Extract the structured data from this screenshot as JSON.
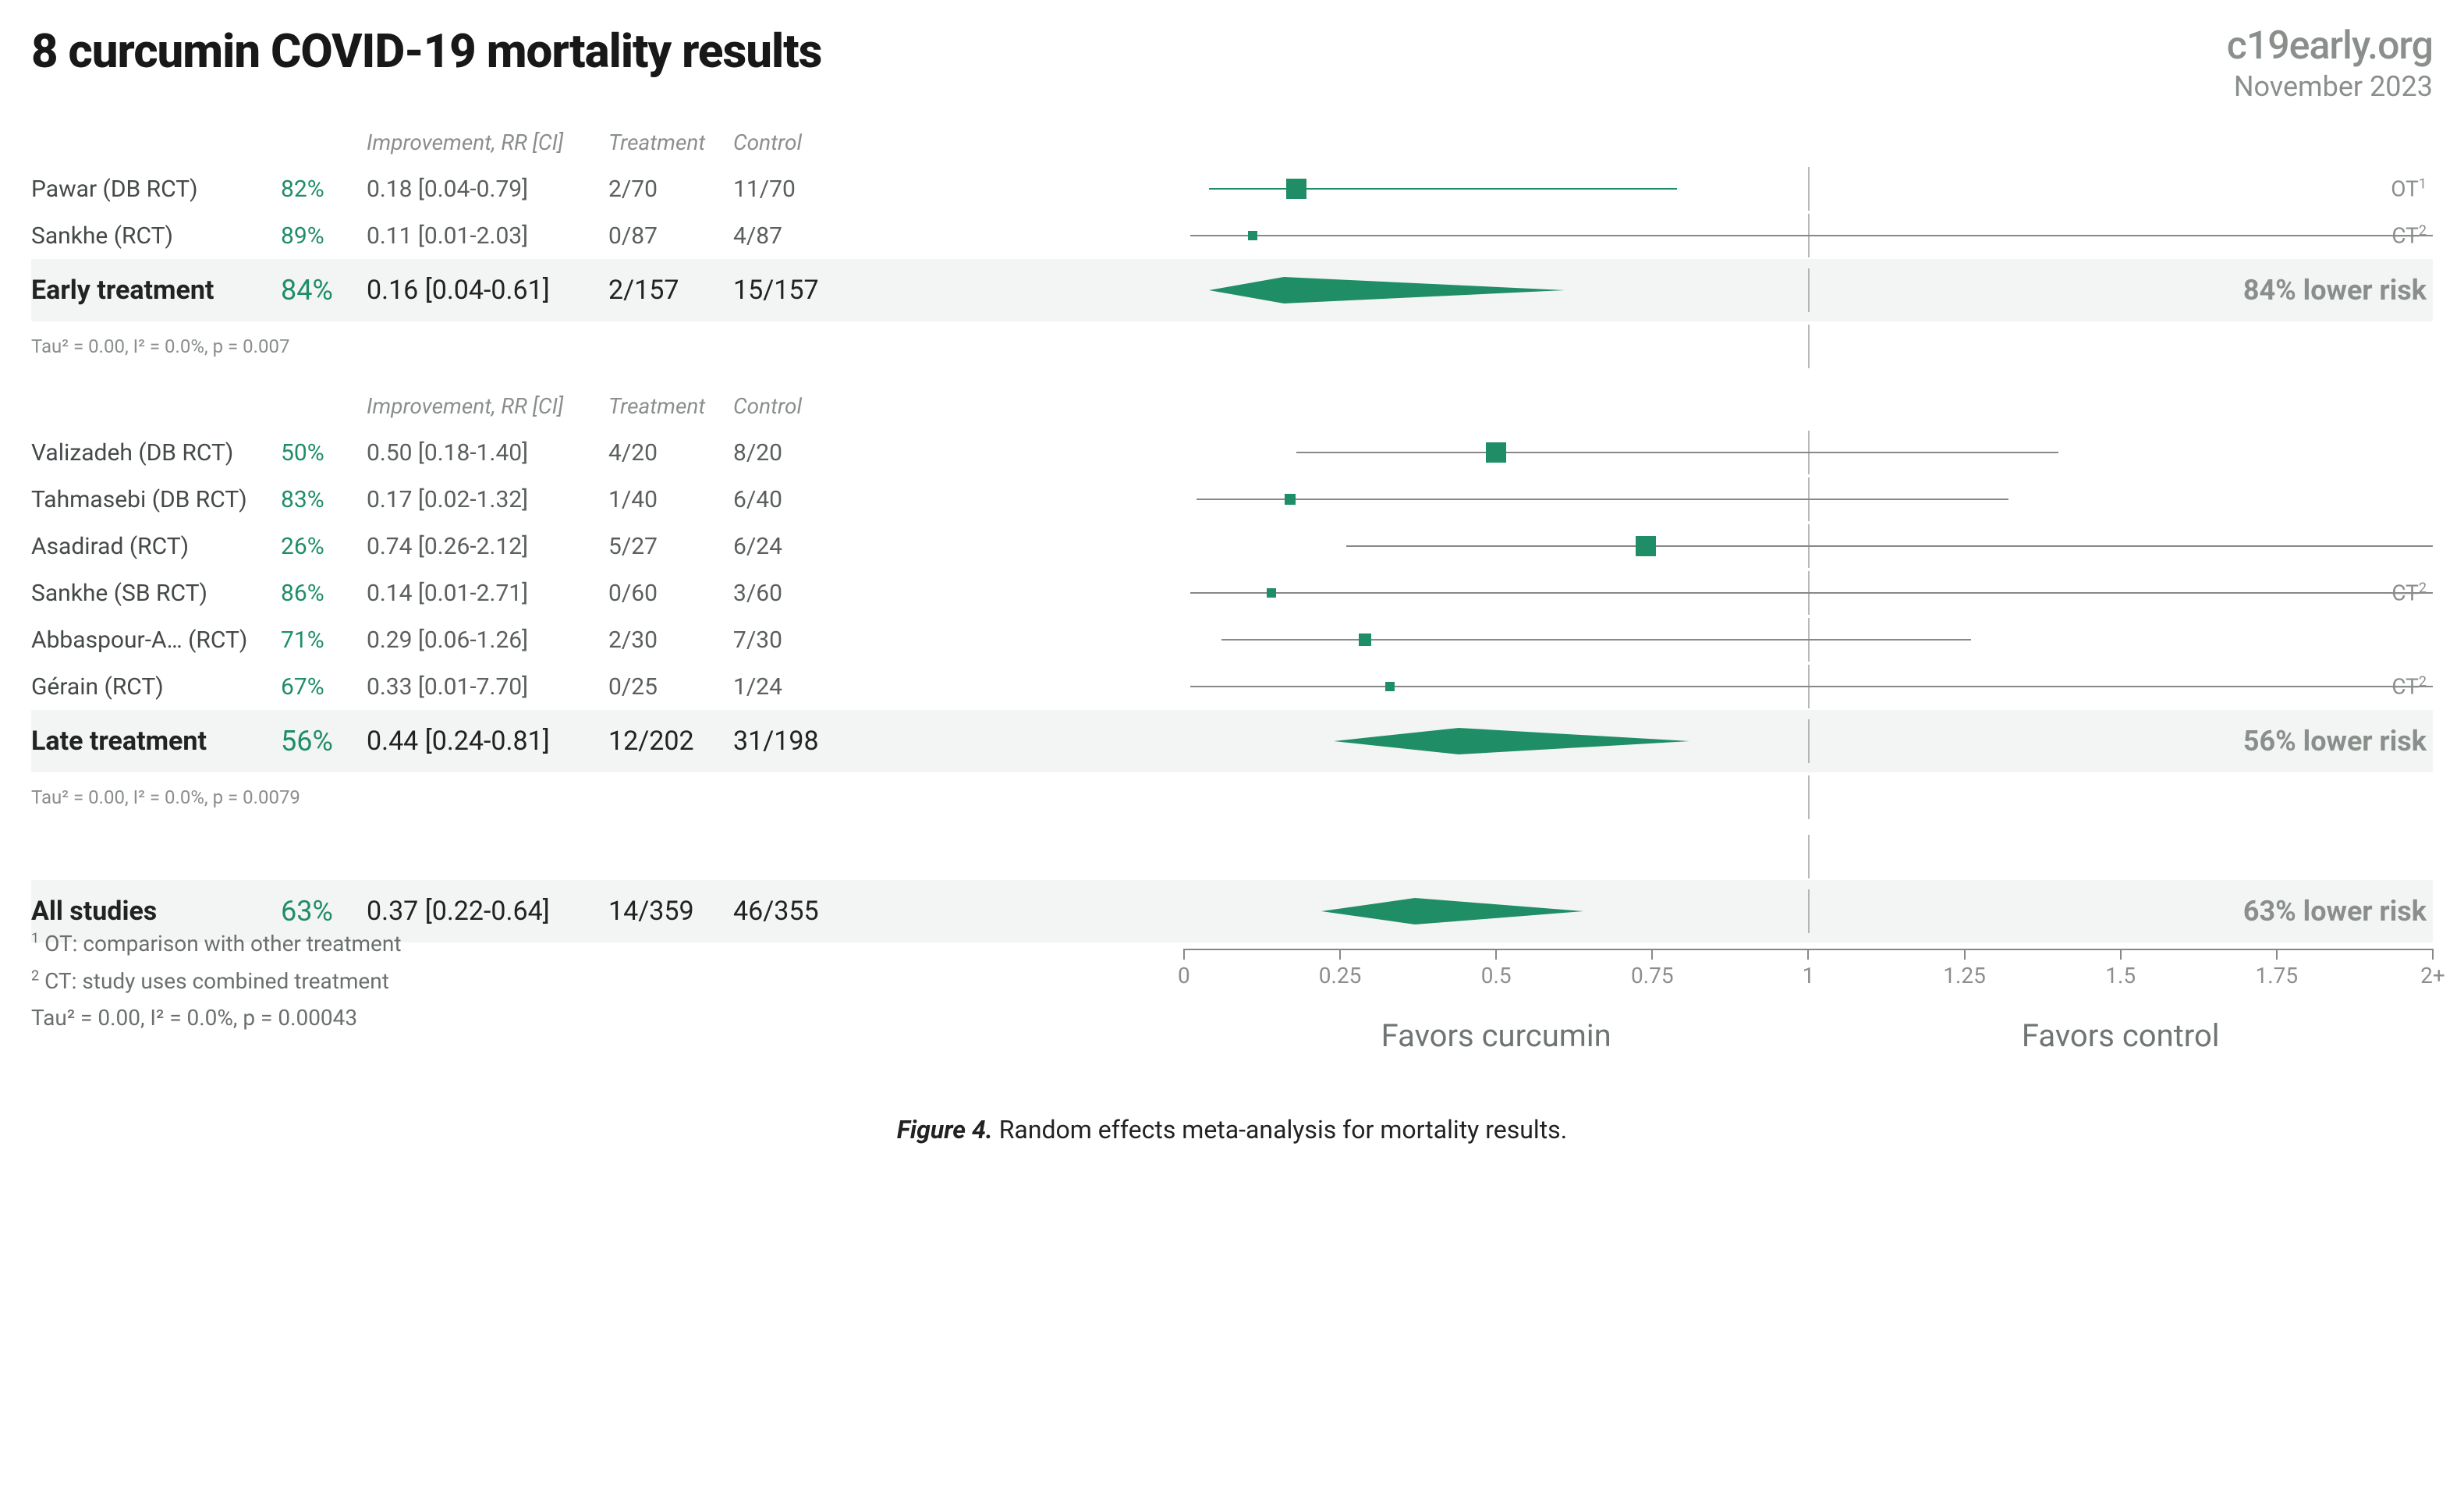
{
  "title": "8 curcumin COVID-19 mortality results",
  "brand": "c19early.org",
  "date": "November 2023",
  "colors": {
    "accent": "#1f8e66",
    "muted": "#8a8f8c",
    "text": "#222222",
    "ci_line": "#888888",
    "summary_bg": "#f3f4f4",
    "background": "#ffffff"
  },
  "plot": {
    "x_min": 0.0,
    "x_max": 2.0,
    "ref": 1.0,
    "ticks": [
      0,
      0.25,
      0.5,
      0.75,
      1,
      1.25,
      1.5,
      1.75,
      2
    ],
    "tick_labels": [
      "0",
      "0.25",
      "0.5",
      "0.75",
      "1",
      "1.25",
      "1.5",
      "1.75",
      "2+"
    ],
    "favors_left": "Favors curcumin",
    "favors_right": "Favors control"
  },
  "headers": {
    "improvement": "Improvement, RR [CI]",
    "treatment": "Treatment",
    "control": "Control"
  },
  "groups": [
    {
      "name": "Early treatment",
      "summary": {
        "pct": "84%",
        "rr_ci": "0.16 [0.04-0.61]",
        "treat": "2/157",
        "ctrl": "15/157",
        "rr": 0.16,
        "ci_lo": 0.04,
        "ci_hi": 0.61,
        "risk_label": "84% lower risk",
        "stats": "Tau² = 0.00, I² = 0.0%, p = 0.007"
      },
      "rows": [
        {
          "study": "Pawar (DB RCT)",
          "pct": "82%",
          "rr_ci": "0.18 [0.04-0.79]",
          "treat": "2/70",
          "ctrl": "11/70",
          "rr": 0.18,
          "ci_lo": 0.04,
          "ci_hi": 0.79,
          "size": 26,
          "annot": "OT",
          "annot_sup": "1",
          "strike": false,
          "ci_green": true
        },
        {
          "study": "Sankhe (RCT)",
          "pct": "89%",
          "rr_ci": "0.11 [0.01-2.03]",
          "treat": "0/87",
          "ctrl": "4/87",
          "rr": 0.11,
          "ci_lo": 0.01,
          "ci_hi": 2.03,
          "size": 12,
          "annot": "CT",
          "annot_sup": "2",
          "strike": true,
          "ci_green": false
        }
      ]
    },
    {
      "name": "Late treatment",
      "summary": {
        "pct": "56%",
        "rr_ci": "0.44 [0.24-0.81]",
        "treat": "12/202",
        "ctrl": "31/198",
        "rr": 0.44,
        "ci_lo": 0.24,
        "ci_hi": 0.81,
        "risk_label": "56% lower risk",
        "stats": "Tau² = 0.00, I² = 0.0%, p = 0.0079"
      },
      "rows": [
        {
          "study": "Valizadeh (DB RCT)",
          "pct": "50%",
          "rr_ci": "0.50 [0.18-1.40]",
          "treat": "4/20",
          "ctrl": "8/20",
          "rr": 0.5,
          "ci_lo": 0.18,
          "ci_hi": 1.4,
          "size": 26,
          "annot": "",
          "annot_sup": "",
          "strike": false,
          "ci_green": false
        },
        {
          "study": "Tahmasebi (DB RCT)",
          "pct": "83%",
          "rr_ci": "0.17 [0.02-1.32]",
          "treat": "1/40",
          "ctrl": "6/40",
          "rr": 0.17,
          "ci_lo": 0.02,
          "ci_hi": 1.32,
          "size": 14,
          "annot": "",
          "annot_sup": "",
          "strike": false,
          "ci_green": false
        },
        {
          "study": "Asadirad (RCT)",
          "pct": "26%",
          "rr_ci": "0.74 [0.26-2.12]",
          "treat": "5/27",
          "ctrl": "6/24",
          "rr": 0.74,
          "ci_lo": 0.26,
          "ci_hi": 2.12,
          "size": 26,
          "annot": "",
          "annot_sup": "",
          "strike": false,
          "ci_green": false
        },
        {
          "study": "Sankhe (SB RCT)",
          "pct": "86%",
          "rr_ci": "0.14 [0.01-2.71]",
          "treat": "0/60",
          "ctrl": "3/60",
          "rr": 0.14,
          "ci_lo": 0.01,
          "ci_hi": 2.71,
          "size": 12,
          "annot": "CT",
          "annot_sup": "2",
          "strike": true,
          "ci_green": false
        },
        {
          "study": "Abbaspour-A… (RCT)",
          "pct": "71%",
          "rr_ci": "0.29 [0.06-1.26]",
          "treat": "2/30",
          "ctrl": "7/30",
          "rr": 0.29,
          "ci_lo": 0.06,
          "ci_hi": 1.26,
          "size": 16,
          "annot": "",
          "annot_sup": "",
          "strike": false,
          "ci_green": false
        },
        {
          "study": "Gérain (RCT)",
          "pct": "67%",
          "rr_ci": "0.33 [0.01-7.70]",
          "treat": "0/25",
          "ctrl": "1/24",
          "rr": 0.33,
          "ci_lo": 0.01,
          "ci_hi": 7.7,
          "size": 12,
          "annot": "CT",
          "annot_sup": "2",
          "strike": true,
          "ci_green": false
        }
      ]
    }
  ],
  "overall": {
    "name": "All studies",
    "pct": "63%",
    "rr_ci": "0.37 [0.22-0.64]",
    "treat": "14/359",
    "ctrl": "46/355",
    "rr": 0.37,
    "ci_lo": 0.22,
    "ci_hi": 0.64,
    "risk_label": "63% lower risk"
  },
  "footnotes": {
    "f1": "OT: comparison with other treatment",
    "f2": "CT: study uses combined treatment",
    "f3": "Tau² = 0.00, I² = 0.0%, p = 0.00043"
  },
  "caption_label": "Figure 4.",
  "caption_text": "Random effects meta-analysis for mortality results."
}
